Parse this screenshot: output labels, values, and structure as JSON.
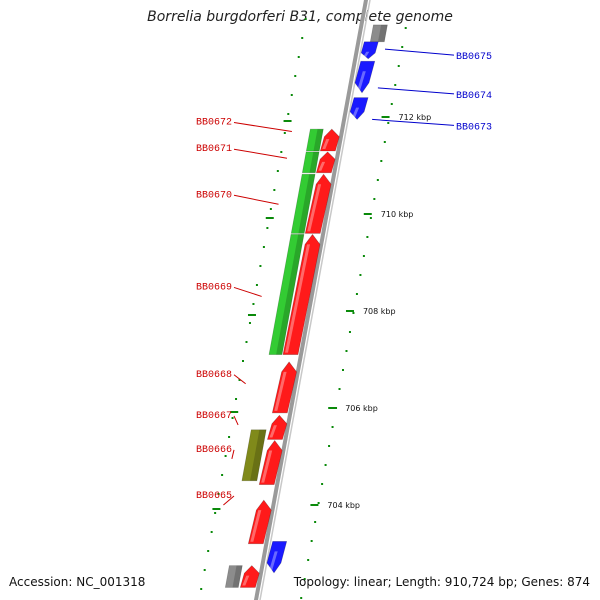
{
  "header": {
    "title": "Borrelia burgdorferi B31, complete genome"
  },
  "footer": {
    "accession": "Accession: NC_001318",
    "summary": "Topology: linear; Length: 910,724 bp; Genes: 874"
  },
  "colors": {
    "forward_gene": "#ff1a1a",
    "reverse_gene": "#1a1aff",
    "green_feature": "#33cc33",
    "olive_feature": "#808a1a",
    "gray_feature": "#8c8c8c",
    "label_left": "#cc0000",
    "label_right": "#0000cc",
    "tick": "#0a8a0a",
    "backbone": "#888888"
  },
  "left_labels": [
    {
      "id": "BB0672",
      "kbp": 711.7
    },
    {
      "id": "BB0671",
      "kbp": 711.15
    },
    {
      "id": "BB0670",
      "kbp": 710.2
    },
    {
      "id": "BB0669",
      "kbp": 708.3
    },
    {
      "id": "BB0668",
      "kbp": 706.5
    },
    {
      "id": "BB0667",
      "kbp": 705.65
    },
    {
      "id": "BB0666",
      "kbp": 704.95
    },
    {
      "id": "BB0665",
      "kbp": 704.0
    }
  ],
  "right_labels": [
    {
      "id": "BB0675",
      "kbp": 713.4
    },
    {
      "id": "BB0674",
      "kbp": 712.6
    },
    {
      "id": "BB0673",
      "kbp": 711.95
    }
  ],
  "genes": [
    {
      "id": "BB0672-gene",
      "strand": "forward",
      "start": 711.3,
      "end": 711.75
    },
    {
      "id": "BB0671-gene",
      "strand": "forward",
      "start": 710.85,
      "end": 711.28
    },
    {
      "id": "BB0670-gene",
      "strand": "forward",
      "start": 709.6,
      "end": 710.82
    },
    {
      "id": "BB0669-gene",
      "strand": "forward",
      "start": 707.1,
      "end": 709.58
    },
    {
      "id": "BB0668-gene",
      "strand": "forward",
      "start": 705.9,
      "end": 706.95
    },
    {
      "id": "BB0667-gene",
      "strand": "forward",
      "start": 705.35,
      "end": 705.85
    },
    {
      "id": "BB0666-gene",
      "strand": "forward",
      "start": 704.42,
      "end": 705.33
    },
    {
      "id": "BB0665-gene",
      "strand": "forward",
      "start": 703.2,
      "end": 704.1
    },
    {
      "id": "next-red-gene",
      "strand": "forward",
      "start": 702.3,
      "end": 702.75
    },
    {
      "id": "BB0675-gene",
      "strand": "reverse",
      "start": 713.2,
      "end": 713.55
    },
    {
      "id": "BB0674-gene",
      "strand": "reverse",
      "start": 712.5,
      "end": 713.15
    },
    {
      "id": "BB0673-gene",
      "strand": "reverse",
      "start": 711.95,
      "end": 712.4
    },
    {
      "id": "blue-lower-gene",
      "strand": "reverse",
      "start": 702.6,
      "end": 703.25
    }
  ],
  "features": [
    {
      "id": "green-feature-1",
      "kind": "green",
      "start": 711.3,
      "end": 711.75
    },
    {
      "id": "green-feature-2",
      "kind": "green",
      "start": 710.85,
      "end": 711.28
    },
    {
      "id": "green-feature-3",
      "kind": "green",
      "start": 709.6,
      "end": 710.82
    },
    {
      "id": "green-feature-4",
      "kind": "green",
      "start": 707.1,
      "end": 709.58
    },
    {
      "id": "olive-feature",
      "kind": "olive",
      "start": 704.5,
      "end": 705.55
    },
    {
      "id": "gray-feature-bottom",
      "kind": "gray",
      "start": 702.3,
      "end": 702.75
    },
    {
      "id": "gray-feature-top",
      "kind": "gray",
      "start": 713.55,
      "end": 713.9
    }
  ],
  "ticks": [
    {
      "kbp": 712,
      "label": "712 kbp"
    },
    {
      "kbp": 710,
      "label": "710 kbp"
    },
    {
      "kbp": 708,
      "label": "708 kbp"
    },
    {
      "kbp": 706,
      "label": "706 kbp"
    },
    {
      "kbp": 704,
      "label": "704 kbp"
    }
  ]
}
